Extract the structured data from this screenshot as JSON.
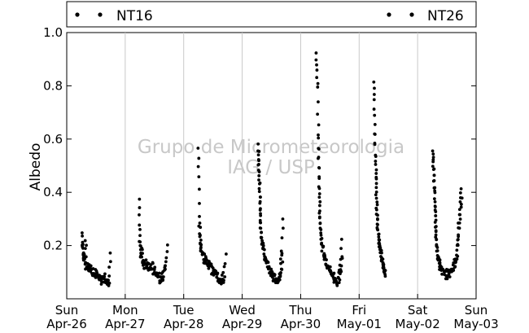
{
  "chart_data": {
    "type": "scatter",
    "title": "",
    "xlabel": "",
    "ylabel": "Albedo",
    "ylim": [
      0.0,
      1.0
    ],
    "yticks": [
      "0.2",
      "0.4",
      "0.6",
      "0.8",
      "1.0"
    ],
    "x_day_range": [
      0,
      7
    ],
    "x_tick_labels": [
      {
        "day": 0,
        "line1": "Sun",
        "line2": "Apr-26"
      },
      {
        "day": 1,
        "line1": "Mon",
        "line2": "Apr-27"
      },
      {
        "day": 2,
        "line1": "Tue",
        "line2": "Apr-28"
      },
      {
        "day": 3,
        "line1": "Wed",
        "line2": "Apr-29"
      },
      {
        "day": 4,
        "line1": "Thu",
        "line2": "Apr-30"
      },
      {
        "day": 5,
        "line1": "Fri",
        "line2": "May-01"
      },
      {
        "day": 6,
        "line1": "Sat",
        "line2": "May-02"
      },
      {
        "day": 7,
        "line1": "Sun",
        "line2": "May-03"
      }
    ],
    "grid": "vertical",
    "legend_placement": "top, outside plot",
    "series": [
      {
        "name": "NT16",
        "color": "#000000",
        "daily_curves": [
          {
            "day": 0,
            "points": [
              [
                0.26,
                0.25
              ],
              [
                0.27,
                0.19
              ],
              [
                0.28,
                0.16
              ],
              [
                0.3,
                0.14
              ],
              [
                0.32,
                0.22
              ],
              [
                0.34,
                0.13
              ],
              [
                0.36,
                0.11
              ],
              [
                0.4,
                0.12
              ],
              [
                0.44,
                0.1
              ],
              [
                0.48,
                0.09
              ],
              [
                0.52,
                0.11
              ],
              [
                0.56,
                0.08
              ],
              [
                0.6,
                0.07
              ],
              [
                0.64,
                0.09
              ],
              [
                0.68,
                0.06
              ],
              [
                0.72,
                0.08
              ],
              [
                0.75,
                0.17
              ]
            ]
          },
          {
            "day": 1,
            "points": [
              [
                0.24,
                0.37
              ],
              [
                0.25,
                0.28
              ],
              [
                0.26,
                0.21
              ],
              [
                0.28,
                0.18
              ],
              [
                0.3,
                0.15
              ],
              [
                0.34,
                0.13
              ],
              [
                0.38,
                0.14
              ],
              [
                0.42,
                0.12
              ],
              [
                0.46,
                0.13
              ],
              [
                0.5,
                0.11
              ],
              [
                0.54,
                0.1
              ],
              [
                0.58,
                0.09
              ],
              [
                0.62,
                0.08
              ],
              [
                0.66,
                0.09
              ],
              [
                0.7,
                0.13
              ],
              [
                0.72,
                0.2
              ]
            ]
          },
          {
            "day": 2,
            "points": [
              [
                0.25,
                0.57
              ],
              [
                0.26,
                0.46
              ],
              [
                0.27,
                0.31
              ],
              [
                0.28,
                0.24
              ],
              [
                0.3,
                0.19
              ],
              [
                0.33,
                0.16
              ],
              [
                0.36,
                0.15
              ],
              [
                0.4,
                0.14
              ],
              [
                0.44,
                0.13
              ],
              [
                0.48,
                0.11
              ],
              [
                0.52,
                0.1
              ],
              [
                0.56,
                0.09
              ],
              [
                0.6,
                0.08
              ],
              [
                0.64,
                0.07
              ],
              [
                0.68,
                0.09
              ],
              [
                0.72,
                0.17
              ]
            ]
          },
          {
            "day": 3,
            "points": [
              [
                0.27,
                0.58
              ],
              [
                0.28,
                0.52
              ],
              [
                0.29,
                0.45
              ],
              [
                0.3,
                0.38
              ],
              [
                0.31,
                0.31
              ],
              [
                0.32,
                0.25
              ],
              [
                0.34,
                0.21
              ],
              [
                0.37,
                0.18
              ],
              [
                0.4,
                0.15
              ],
              [
                0.44,
                0.13
              ],
              [
                0.48,
                0.1
              ],
              [
                0.52,
                0.09
              ],
              [
                0.56,
                0.08
              ],
              [
                0.6,
                0.07
              ],
              [
                0.64,
                0.09
              ],
              [
                0.66,
                0.12
              ],
              [
                0.68,
                0.19
              ],
              [
                0.7,
                0.3
              ]
            ]
          },
          {
            "day": 4,
            "points": [
              [
                0.27,
                0.92
              ],
              [
                0.28,
                0.86
              ],
              [
                0.29,
                0.79
              ],
              [
                0.3,
                0.65
              ],
              [
                0.31,
                0.53
              ],
              [
                0.32,
                0.42
              ],
              [
                0.33,
                0.33
              ],
              [
                0.34,
                0.26
              ],
              [
                0.36,
                0.21
              ],
              [
                0.39,
                0.17
              ],
              [
                0.42,
                0.15
              ],
              [
                0.46,
                0.13
              ],
              [
                0.5,
                0.11
              ],
              [
                0.54,
                0.09
              ],
              [
                0.58,
                0.08
              ],
              [
                0.62,
                0.07
              ],
              [
                0.66,
                0.1
              ],
              [
                0.68,
                0.13
              ],
              [
                0.7,
                0.22
              ]
            ]
          },
          {
            "day": 5,
            "points": [
              [
                0.25,
                0.82
              ],
              [
                0.26,
                0.75
              ],
              [
                0.27,
                0.65
              ],
              [
                0.28,
                0.54
              ],
              [
                0.29,
                0.46
              ],
              [
                0.3,
                0.38
              ],
              [
                0.31,
                0.31
              ],
              [
                0.32,
                0.26
              ],
              [
                0.34,
                0.22
              ],
              [
                0.36,
                0.18
              ],
              [
                0.38,
                0.16
              ],
              [
                0.4,
                0.14
              ],
              [
                0.42,
                0.12
              ],
              [
                0.44,
                0.1
              ]
            ]
          },
          {
            "day": 6,
            "points": [
              [
                0.26,
                0.56
              ],
              [
                0.27,
                0.5
              ],
              [
                0.28,
                0.44
              ],
              [
                0.29,
                0.37
              ],
              [
                0.3,
                0.31
              ],
              [
                0.31,
                0.25
              ],
              [
                0.32,
                0.2
              ],
              [
                0.34,
                0.16
              ],
              [
                0.36,
                0.14
              ],
              [
                0.4,
                0.12
              ],
              [
                0.44,
                0.11
              ],
              [
                0.48,
                0.1
              ],
              [
                0.52,
                0.1
              ],
              [
                0.56,
                0.11
              ],
              [
                0.6,
                0.12
              ],
              [
                0.64,
                0.14
              ],
              [
                0.66,
                0.17
              ],
              [
                0.68,
                0.22
              ],
              [
                0.7,
                0.29
              ],
              [
                0.72,
                0.36
              ],
              [
                0.74,
                0.41
              ]
            ]
          }
        ]
      },
      {
        "name": "NT26",
        "color": "#000000",
        "daily_curves": [
          {
            "day": 0,
            "points": [
              [
                0.27,
                0.21
              ],
              [
                0.29,
                0.17
              ],
              [
                0.31,
                0.15
              ],
              [
                0.33,
                0.12
              ],
              [
                0.37,
                0.13
              ],
              [
                0.41,
                0.11
              ],
              [
                0.45,
                0.1
              ],
              [
                0.49,
                0.08
              ],
              [
                0.53,
                0.1
              ],
              [
                0.57,
                0.07
              ],
              [
                0.61,
                0.06
              ],
              [
                0.65,
                0.08
              ],
              [
                0.69,
                0.05
              ],
              [
                0.73,
                0.07
              ]
            ]
          },
          {
            "day": 1,
            "points": [
              [
                0.25,
                0.22
              ],
              [
                0.27,
                0.17
              ],
              [
                0.29,
                0.14
              ],
              [
                0.33,
                0.12
              ],
              [
                0.37,
                0.13
              ],
              [
                0.41,
                0.11
              ],
              [
                0.45,
                0.12
              ],
              [
                0.49,
                0.1
              ],
              [
                0.53,
                0.09
              ],
              [
                0.57,
                0.08
              ],
              [
                0.61,
                0.07
              ],
              [
                0.65,
                0.08
              ],
              [
                0.69,
                0.12
              ]
            ]
          },
          {
            "day": 2,
            "points": [
              [
                0.26,
                0.27
              ],
              [
                0.28,
                0.21
              ],
              [
                0.3,
                0.18
              ],
              [
                0.34,
                0.15
              ],
              [
                0.38,
                0.14
              ],
              [
                0.42,
                0.13
              ],
              [
                0.46,
                0.12
              ],
              [
                0.5,
                0.1
              ],
              [
                0.54,
                0.09
              ],
              [
                0.58,
                0.08
              ],
              [
                0.62,
                0.07
              ],
              [
                0.66,
                0.06
              ],
              [
                0.7,
                0.08
              ]
            ]
          },
          {
            "day": 3,
            "points": [
              [
                0.28,
                0.55
              ],
              [
                0.29,
                0.48
              ],
              [
                0.3,
                0.41
              ],
              [
                0.31,
                0.34
              ],
              [
                0.32,
                0.28
              ],
              [
                0.33,
                0.23
              ],
              [
                0.35,
                0.19
              ],
              [
                0.38,
                0.16
              ],
              [
                0.41,
                0.14
              ],
              [
                0.45,
                0.12
              ],
              [
                0.49,
                0.09
              ],
              [
                0.53,
                0.08
              ],
              [
                0.57,
                0.07
              ],
              [
                0.61,
                0.06
              ],
              [
                0.65,
                0.08
              ],
              [
                0.67,
                0.11
              ],
              [
                0.69,
                0.16
              ]
            ]
          },
          {
            "day": 4,
            "points": [
              [
                0.3,
                0.6
              ],
              [
                0.31,
                0.49
              ],
              [
                0.32,
                0.38
              ],
              [
                0.33,
                0.3
              ],
              [
                0.35,
                0.24
              ],
              [
                0.37,
                0.19
              ],
              [
                0.4,
                0.16
              ],
              [
                0.43,
                0.14
              ],
              [
                0.47,
                0.12
              ],
              [
                0.51,
                0.1
              ],
              [
                0.55,
                0.08
              ],
              [
                0.59,
                0.07
              ],
              [
                0.63,
                0.06
              ],
              [
                0.67,
                0.08
              ],
              [
                0.69,
                0.11
              ],
              [
                0.71,
                0.16
              ]
            ]
          },
          {
            "day": 5,
            "points": [
              [
                0.27,
                0.62
              ],
              [
                0.28,
                0.5
              ],
              [
                0.29,
                0.42
              ],
              [
                0.3,
                0.34
              ],
              [
                0.31,
                0.28
              ],
              [
                0.33,
                0.24
              ],
              [
                0.35,
                0.2
              ],
              [
                0.37,
                0.17
              ],
              [
                0.39,
                0.15
              ],
              [
                0.41,
                0.13
              ],
              [
                0.43,
                0.11
              ],
              [
                0.45,
                0.09
              ]
            ]
          },
          {
            "day": 6,
            "points": [
              [
                0.27,
                0.53
              ],
              [
                0.28,
                0.47
              ],
              [
                0.29,
                0.4
              ],
              [
                0.3,
                0.33
              ],
              [
                0.31,
                0.27
              ],
              [
                0.32,
                0.22
              ],
              [
                0.33,
                0.18
              ],
              [
                0.35,
                0.15
              ],
              [
                0.37,
                0.13
              ],
              [
                0.41,
                0.11
              ],
              [
                0.45,
                0.1
              ],
              [
                0.49,
                0.09
              ],
              [
                0.53,
                0.09
              ],
              [
                0.57,
                0.1
              ],
              [
                0.61,
                0.11
              ],
              [
                0.65,
                0.13
              ],
              [
                0.67,
                0.16
              ],
              [
                0.69,
                0.2
              ],
              [
                0.71,
                0.26
              ],
              [
                0.73,
                0.32
              ],
              [
                0.75,
                0.38
              ]
            ]
          }
        ]
      }
    ],
    "watermark": [
      "Grupo de Micrometeorologia",
      "IAG / USP"
    ]
  }
}
